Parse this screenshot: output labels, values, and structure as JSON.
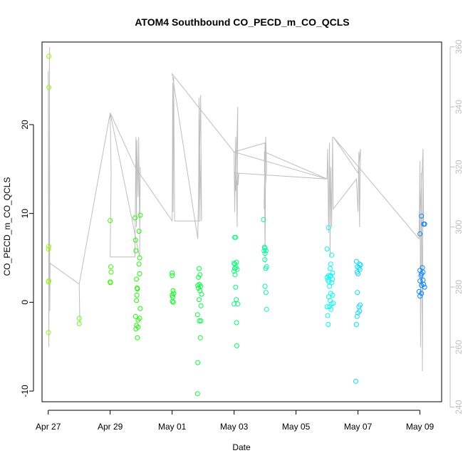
{
  "chart_data": {
    "type": "scatter",
    "title": "ATOM4 Southbound CO_PECD_m_CO_QCLS",
    "xlabel": "Date",
    "ylabel": "CO_PECD_m_CO_QCLS",
    "xlim_days": [
      -0.2,
      12.7
    ],
    "ylim": [
      -11.2,
      29.3
    ],
    "y2lim": [
      241.8,
      361.6
    ],
    "x_ticks": [
      {
        "day": 0,
        "label": "Apr 27"
      },
      {
        "day": 2,
        "label": "Apr 29"
      },
      {
        "day": 4,
        "label": "May 01"
      },
      {
        "day": 6,
        "label": "May 03"
      },
      {
        "day": 8,
        "label": "May 05"
      },
      {
        "day": 10,
        "label": "May 07"
      },
      {
        "day": 12,
        "label": "May 09"
      }
    ],
    "y_ticks": [
      -10,
      0,
      10,
      20
    ],
    "y2_ticks": [
      240,
      260,
      280,
      300,
      320,
      340,
      360
    ],
    "points_note": "x in days since Apr 27 00:00, y = CO_PECD - CO_QCLS; colors vary from yellow-green to blue with time",
    "points": [
      [
        0.02,
        27.7
      ],
      [
        0.02,
        24.2
      ],
      [
        0.02,
        6.3
      ],
      [
        0.01,
        6.0
      ],
      [
        0.02,
        2.4
      ],
      [
        0.01,
        2.3
      ],
      [
        0.01,
        -3.4
      ],
      [
        1.0,
        -1.8
      ],
      [
        1.0,
        -2.4
      ],
      [
        2.0,
        9.2
      ],
      [
        2.02,
        4.0
      ],
      [
        2.03,
        3.4
      ],
      [
        2.0,
        2.3
      ],
      [
        2.01,
        2.2
      ],
      [
        2.8,
        9.5
      ],
      [
        2.82,
        7.0
      ],
      [
        2.83,
        5.8
      ],
      [
        2.85,
        2.6
      ],
      [
        2.87,
        1.6
      ],
      [
        2.86,
        0.8
      ],
      [
        2.85,
        0.2
      ],
      [
        2.82,
        -1.6
      ],
      [
        2.9,
        -2.0
      ],
      [
        2.85,
        -2.6
      ],
      [
        2.83,
        -3.0
      ],
      [
        2.9,
        -2.8
      ],
      [
        2.88,
        -4.0
      ],
      [
        2.95,
        -1.8
      ],
      [
        2.97,
        -0.7
      ],
      [
        2.97,
        9.8
      ],
      [
        2.93,
        8.0
      ],
      [
        2.95,
        5.0
      ],
      [
        2.93,
        4.3
      ],
      [
        2.95,
        3.2
      ],
      [
        2.88,
        1.5
      ],
      [
        4.0,
        3.3
      ],
      [
        4.0,
        3.0
      ],
      [
        4.03,
        1.3
      ],
      [
        4.05,
        1.0
      ],
      [
        4.0,
        0.8
      ],
      [
        4.02,
        0.6
      ],
      [
        4.01,
        0.1
      ],
      [
        4.04,
        0.0
      ],
      [
        4.87,
        3.8
      ],
      [
        4.9,
        3.1
      ],
      [
        4.85,
        2.8
      ],
      [
        4.88,
        2.0
      ],
      [
        4.83,
        1.9
      ],
      [
        4.85,
        1.6
      ],
      [
        4.9,
        1.3
      ],
      [
        4.92,
        1.8
      ],
      [
        4.95,
        0.9
      ],
      [
        4.87,
        0.3
      ],
      [
        4.93,
        -0.4
      ],
      [
        4.82,
        -1.4
      ],
      [
        4.88,
        -2.1
      ],
      [
        4.93,
        -2.1
      ],
      [
        4.91,
        -4.0
      ],
      [
        4.83,
        -6.8
      ],
      [
        4.82,
        -10.3
      ],
      [
        6.02,
        7.3
      ],
      [
        6.05,
        7.3
      ],
      [
        6.0,
        4.4
      ],
      [
        6.03,
        4.3
      ],
      [
        6.08,
        4.5
      ],
      [
        6.02,
        3.8
      ],
      [
        6.06,
        3.9
      ],
      [
        6.0,
        3.5
      ],
      [
        6.1,
        3.7
      ],
      [
        6.03,
        3.1
      ],
      [
        6.05,
        1.7
      ],
      [
        6.07,
        0.3
      ],
      [
        6.0,
        -0.2
      ],
      [
        6.12,
        -0.2
      ],
      [
        6.08,
        -2.3
      ],
      [
        6.09,
        -4.9
      ],
      [
        6.95,
        9.3
      ],
      [
        6.98,
        6.2
      ],
      [
        7.0,
        6.1
      ],
      [
        7.03,
        5.8
      ],
      [
        6.97,
        5.8
      ],
      [
        7.0,
        5.5
      ],
      [
        6.99,
        4.8
      ],
      [
        7.02,
        3.8
      ],
      [
        7.05,
        4.0
      ],
      [
        7.0,
        1.8
      ],
      [
        7.03,
        1.1
      ],
      [
        7.05,
        -0.8
      ],
      [
        9.05,
        8.4
      ],
      [
        9.0,
        6.0
      ],
      [
        9.15,
        5.3
      ],
      [
        9.12,
        4.3
      ],
      [
        9.1,
        3.8
      ],
      [
        9.18,
        3.3
      ],
      [
        9.05,
        3.0
      ],
      [
        9.12,
        3.0
      ],
      [
        9.0,
        2.8
      ],
      [
        9.1,
        2.9
      ],
      [
        9.18,
        2.6
      ],
      [
        9.03,
        2.5
      ],
      [
        9.06,
        2.3
      ],
      [
        9.15,
        2.2
      ],
      [
        9.08,
        1.8
      ],
      [
        9.12,
        1.0
      ],
      [
        9.18,
        0.8
      ],
      [
        9.05,
        0.6
      ],
      [
        9.1,
        0.2
      ],
      [
        9.14,
        -0.2
      ],
      [
        9.2,
        -0.1
      ],
      [
        9.0,
        -0.5
      ],
      [
        9.08,
        -0.5
      ],
      [
        9.13,
        -0.8
      ],
      [
        9.02,
        -1.5
      ],
      [
        9.04,
        -2.5
      ],
      [
        9.95,
        4.6
      ],
      [
        10.05,
        4.3
      ],
      [
        10.08,
        4.2
      ],
      [
        9.98,
        4.0
      ],
      [
        10.03,
        3.9
      ],
      [
        10.06,
        3.7
      ],
      [
        9.97,
        3.4
      ],
      [
        10.0,
        3.2
      ],
      [
        9.98,
        1.1
      ],
      [
        10.07,
        -0.3
      ],
      [
        10.03,
        -0.5
      ],
      [
        10.05,
        -1.0
      ],
      [
        10.0,
        -1.2
      ],
      [
        9.97,
        -1.6
      ],
      [
        9.95,
        -2.5
      ],
      [
        9.93,
        -8.9
      ],
      [
        12.0,
        7.7
      ],
      [
        12.05,
        9.7
      ],
      [
        12.12,
        8.8
      ],
      [
        12.15,
        8.8
      ],
      [
        12.08,
        3.9
      ],
      [
        12.0,
        3.6
      ],
      [
        12.1,
        3.4
      ],
      [
        12.05,
        3.2
      ],
      [
        12.03,
        3.0
      ],
      [
        12.0,
        2.4
      ],
      [
        12.1,
        2.5
      ],
      [
        12.05,
        1.9
      ],
      [
        12.12,
        2.0
      ],
      [
        11.97,
        1.2
      ],
      [
        12.05,
        1.0
      ],
      [
        12.0,
        0.7
      ],
      [
        12.15,
        1.7
      ]
    ],
    "co_trace_note": "grey line = CO mixing ratio on right axis (ppb) vs time",
    "co_trace": [
      [
        0.0,
        352
      ],
      [
        0.02,
        260
      ],
      [
        0.04,
        360
      ],
      [
        0.05,
        272
      ],
      [
        0.06,
        288
      ],
      [
        0.0,
        288
      ],
      [
        0.05,
        288
      ],
      [
        1.0,
        281
      ],
      [
        1.02,
        268
      ],
      [
        1.0,
        281
      ],
      [
        2.0,
        338
      ],
      [
        2.03,
        318
      ],
      [
        2.0,
        290
      ],
      [
        2.8,
        290
      ],
      [
        2.83,
        330
      ],
      [
        2.85,
        300
      ],
      [
        2.86,
        329
      ],
      [
        2.9,
        310
      ],
      [
        2.92,
        330
      ],
      [
        2.95,
        300
      ],
      [
        2.97,
        320
      ],
      [
        2.95,
        290
      ],
      [
        2.0,
        338
      ],
      [
        2.8,
        320
      ],
      [
        4.0,
        302
      ],
      [
        4.02,
        348
      ],
      [
        4.03,
        305
      ],
      [
        4.05,
        350
      ],
      [
        4.08,
        302
      ],
      [
        4.9,
        302
      ],
      [
        4.87,
        343
      ],
      [
        4.85,
        302
      ],
      [
        4.92,
        344
      ],
      [
        4.95,
        302
      ],
      [
        4.88,
        330
      ],
      [
        4.83,
        296
      ],
      [
        4.0,
        351
      ],
      [
        6.0,
        325
      ],
      [
        6.02,
        305
      ],
      [
        6.05,
        330
      ],
      [
        6.1,
        300
      ],
      [
        6.12,
        340
      ],
      [
        6.05,
        312
      ],
      [
        6.15,
        318
      ],
      [
        6.13,
        314
      ],
      [
        6.0,
        318
      ],
      [
        9.0,
        316
      ],
      [
        6.98,
        325
      ],
      [
        7.0,
        288
      ],
      [
        7.02,
        330
      ],
      [
        7.05,
        320
      ],
      [
        6.97,
        306
      ],
      [
        7.0,
        328
      ],
      [
        6.0,
        325
      ],
      [
        9.0,
        316
      ],
      [
        9.02,
        326
      ],
      [
        9.05,
        298
      ],
      [
        9.08,
        328
      ],
      [
        9.1,
        290
      ],
      [
        9.12,
        320
      ],
      [
        9.15,
        300
      ],
      [
        9.18,
        330
      ],
      [
        9.2,
        306
      ],
      [
        9.95,
        316
      ],
      [
        10.0,
        305
      ],
      [
        10.03,
        325
      ],
      [
        10.05,
        300
      ],
      [
        10.08,
        326
      ],
      [
        10.0,
        318
      ],
      [
        9.2,
        330
      ],
      [
        11.97,
        296
      ],
      [
        12.0,
        322
      ],
      [
        12.02,
        260
      ],
      [
        12.05,
        318
      ],
      [
        12.08,
        252
      ],
      [
        12.1,
        320
      ],
      [
        12.12,
        300
      ],
      [
        12.1,
        326
      ],
      [
        11.97,
        296
      ]
    ]
  }
}
